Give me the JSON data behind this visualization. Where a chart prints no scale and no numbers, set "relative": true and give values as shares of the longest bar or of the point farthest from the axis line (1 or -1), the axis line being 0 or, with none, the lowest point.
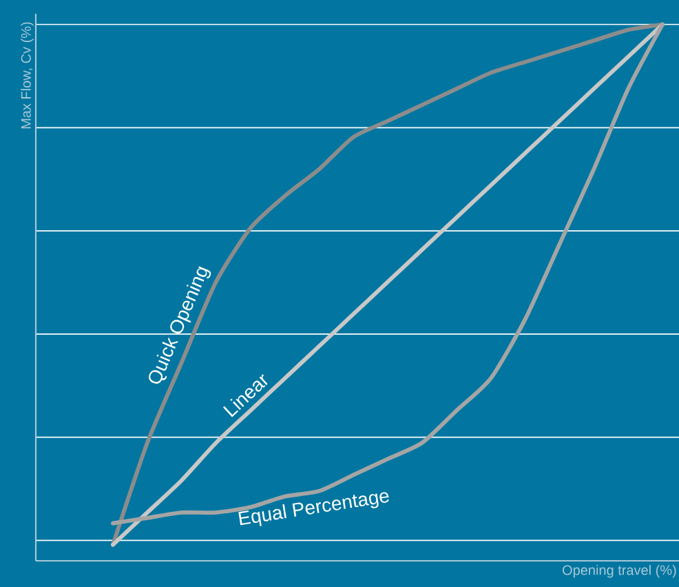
{
  "chart_data": {
    "type": "line",
    "relative": true,
    "grid": "y",
    "xlabel": "Opening travel (%)",
    "ylabel": "Max Flow, Cv (%)",
    "categories": [
      null,
      null,
      null,
      null,
      null,
      null,
      null,
      null,
      null,
      null,
      null,
      null,
      null,
      null,
      null,
      null,
      null
    ],
    "series": [
      {
        "name": "Quick Opening",
        "color": "#8c8c8c",
        "values": [
          0.03,
          0.22,
          0.37,
          0.52,
          0.62,
          0.68,
          0.73,
          0.79,
          0.82,
          0.85,
          0.88,
          0.91,
          0.93,
          0.95,
          0.97,
          0.99,
          1.0
        ]
      },
      {
        "name": "Linear",
        "color": "#c8c8c8",
        "values": [
          0.03,
          0.09,
          0.15,
          0.22,
          0.28,
          0.34,
          0.4,
          0.46,
          0.52,
          0.58,
          0.64,
          0.7,
          0.76,
          0.82,
          0.88,
          0.94,
          1.0
        ]
      },
      {
        "name": "Equal Percentage",
        "color": "#a5a5a5",
        "values": [
          0.07,
          0.08,
          0.09,
          0.09,
          0.1,
          0.12,
          0.13,
          0.16,
          0.19,
          0.22,
          0.28,
          0.34,
          0.45,
          0.59,
          0.73,
          0.88,
          1.0
        ]
      }
    ]
  }
}
